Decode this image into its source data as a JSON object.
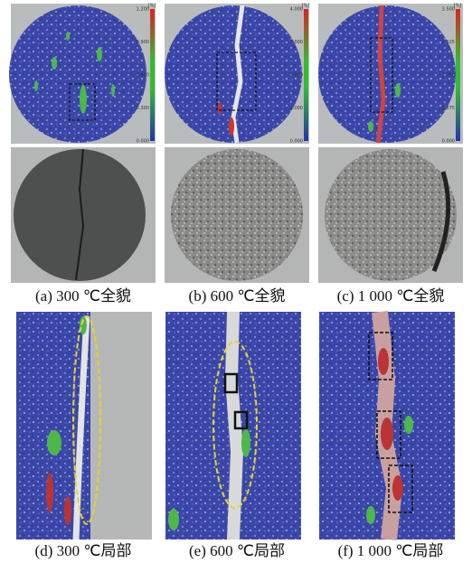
{
  "overview_panels": [
    {
      "caption": "(a) 300 ℃全貌",
      "colorbar": {
        "unit": "[%]",
        "ticks": [
          "1.200",
          "0.900",
          "0.600",
          "0.300",
          "0.000"
        ]
      }
    },
    {
      "caption": "(b) 600 ℃全貌",
      "colorbar": {
        "unit": "[%]",
        "ticks": [
          "4.000",
          "3.000",
          "2.000",
          "1.000",
          "0.000"
        ]
      }
    },
    {
      "caption": "(c) 1 000 ℃全貌",
      "colorbar": {
        "unit": "[%]",
        "ticks": [
          "3.500",
          "2.625",
          "1.750",
          "0.875",
          "0.000"
        ]
      }
    }
  ],
  "detail_panels": [
    {
      "caption": "(d) 300 ℃局部"
    },
    {
      "caption": "(e) 600 ℃局部"
    },
    {
      "caption": "(f) 1 000 ℃局部"
    }
  ]
}
